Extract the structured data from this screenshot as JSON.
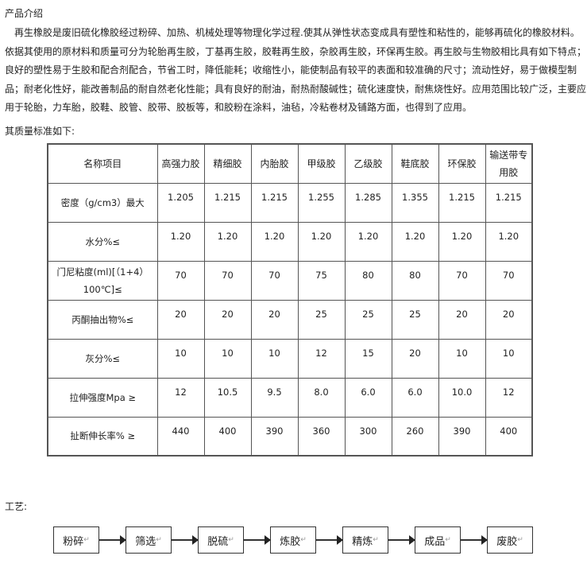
{
  "intro_title": "产品介绍",
  "paragraph": "　再生橡胶是废旧硫化橡胶经过粉碎、加热、机械处理等物理化学过程.使其从弹性状态变成具有塑性和粘性的，能够再硫化的橡胶材料。依据其使用的原材料和质量可分为轮胎再生胶，丁基再生胶，胶鞋再生胶，杂胶再生胶，环保再生胶。再生胶与生物胶相比具有如下特点；良好的塑性易于生胶和配合剂配合，节省工时，降低能耗；收缩性小，能使制品有较平的表面和较准确的尺寸；流动性好，易于做模型制品；耐老化性好，能改善制品的耐自然老化性能；具有良好的耐油，耐热耐酸碱性；硫化速度快，耐焦烧性好。应用范围比较广泛，主要应用于轮胎，力车胎，胶鞋、胶管、胶带、胶板等，和胶粉在涂料，油毡，冷粘卷材及铺路方面，也得到了应用。",
  "quality_title": "其质量标准如下:",
  "table": {
    "headers": [
      "名称项目",
      "高强力胶",
      "精细胶",
      "内胎胶",
      "甲级胶",
      "乙级胶",
      "鞋底胶",
      "环保胶",
      "输送带专用胶"
    ],
    "rows": [
      [
        "密度（g/cm3）最大",
        "1.205",
        "1.215",
        "1.215",
        "1.255",
        "1.285",
        "1.355",
        "1.215",
        "1.215"
      ],
      [
        "水分%≤",
        "1.20",
        "1.20",
        "1.20",
        "1.20",
        "1.20",
        "1.20",
        "1.20",
        "1.20"
      ],
      [
        "门尼粘度(ml)[（1+4）100℃]≤",
        "70",
        "70",
        "70",
        "75",
        "80",
        "80",
        "70",
        "70"
      ],
      [
        "丙酮抽出物%≤",
        "20",
        "20",
        "20",
        "25",
        "25",
        "25",
        "20",
        "20"
      ],
      [
        "灰分%≤",
        "10",
        "10",
        "10",
        "12",
        "15",
        "20",
        "10",
        "10"
      ],
      [
        "拉伸强度Mpa ≥",
        "12",
        "10.5",
        "9.5",
        "8.0",
        "6.0",
        "6.0",
        "10.0",
        "12"
      ],
      [
        "扯断伸长率% ≥",
        "440",
        "400",
        "390",
        "360",
        "300",
        "260",
        "390",
        "400"
      ]
    ]
  },
  "craft_title": "工艺:",
  "flow": [
    "粉碎",
    "筛选",
    "脱硫",
    "炼胶",
    "精炼",
    "成品",
    "废胶"
  ],
  "return_mark": "↵"
}
